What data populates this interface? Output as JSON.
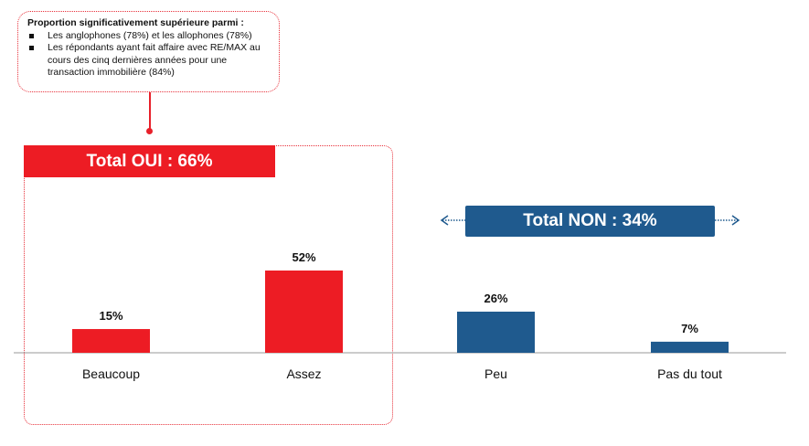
{
  "callout": {
    "title": "Proportion significativement supérieure parmi :",
    "items": [
      "Les anglophones (78%) et les allophones (78%)",
      "Les répondants ayant fait affaire avec RE/MAX au cours des cinq dernières années pour une transaction immobilière (84%)"
    ]
  },
  "groups": {
    "oui": "Total OUI : 66%",
    "non": "Total NON : 34%"
  },
  "colors": {
    "oui": "#ed1c24",
    "non": "#1f5a8e"
  },
  "chart_data": {
    "type": "bar",
    "categories": [
      "Beaucoup",
      "Assez",
      "Peu",
      "Pas du tout"
    ],
    "values": [
      15,
      52,
      26,
      7
    ],
    "data_labels": [
      "15%",
      "52%",
      "26%",
      "7%"
    ],
    "series_colors": [
      "#ed1c24",
      "#ed1c24",
      "#1f5a8e",
      "#1f5a8e"
    ],
    "title": "",
    "xlabel": "",
    "ylabel": "",
    "ylim": [
      0,
      52
    ],
    "grid": false
  }
}
